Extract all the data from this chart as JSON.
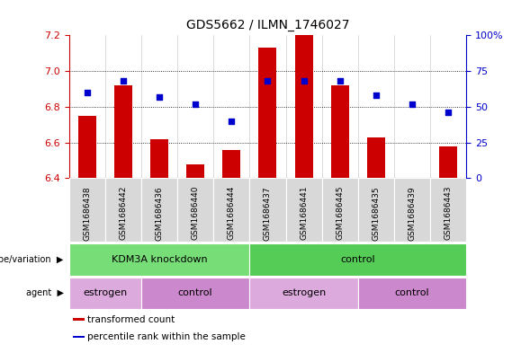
{
  "title": "GDS5662 / ILMN_1746027",
  "samples": [
    "GSM1686438",
    "GSM1686442",
    "GSM1686436",
    "GSM1686440",
    "GSM1686444",
    "GSM1686437",
    "GSM1686441",
    "GSM1686445",
    "GSM1686435",
    "GSM1686439",
    "GSM1686443"
  ],
  "transformed_count": [
    6.75,
    6.92,
    6.62,
    6.48,
    6.56,
    7.13,
    7.2,
    6.92,
    6.63,
    6.4,
    6.58
  ],
  "percentile_rank": [
    60,
    68,
    57,
    52,
    40,
    68,
    68,
    68,
    58,
    52,
    46
  ],
  "ylim_left": [
    6.4,
    7.2
  ],
  "ylim_right": [
    0,
    100
  ],
  "yticks_left": [
    6.4,
    6.6,
    6.8,
    7.0,
    7.2
  ],
  "yticks_right": [
    0,
    25,
    50,
    75,
    100
  ],
  "bar_color": "#cc0000",
  "dot_color": "#0000cc",
  "bar_bottom": 6.4,
  "genotype_groups": [
    {
      "label": "KDM3A knockdown",
      "start": 0,
      "end": 5,
      "color": "#77dd77"
    },
    {
      "label": "control",
      "start": 5,
      "end": 11,
      "color": "#55cc55"
    }
  ],
  "agent_groups": [
    {
      "label": "estrogen",
      "start": 0,
      "end": 2,
      "color": "#ddaadd"
    },
    {
      "label": "control",
      "start": 2,
      "end": 5,
      "color": "#cc88cc"
    },
    {
      "label": "estrogen",
      "start": 5,
      "end": 8,
      "color": "#ddaadd"
    },
    {
      "label": "control",
      "start": 8,
      "end": 11,
      "color": "#cc88cc"
    }
  ],
  "legend_items": [
    {
      "label": "transformed count",
      "color": "#cc0000"
    },
    {
      "label": "percentile rank within the sample",
      "color": "#0000cc"
    }
  ],
  "left_axis_color": "#cc0000",
  "right_axis_color": "#0000cc"
}
